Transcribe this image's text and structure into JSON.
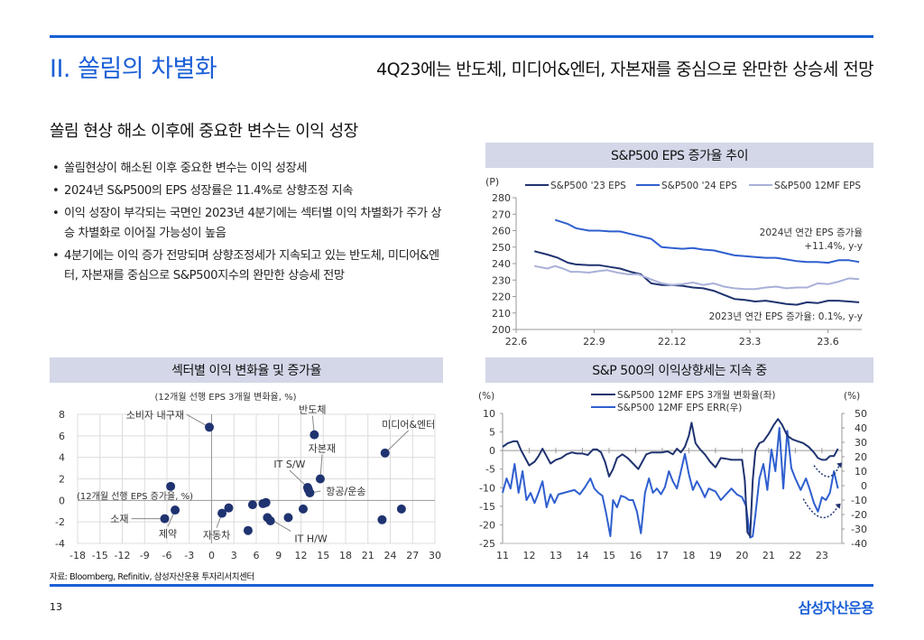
{
  "header": {
    "title": "II. 쏠림의 차별화",
    "subtitle": "4Q23에는 반도체, 미디어&엔터, 자본재를 중심으로 완만한 상승세 전망"
  },
  "main": {
    "subheading": "쏠림 현상 해소 이후에 중요한 변수는 이익 성장",
    "bullets": [
      "쏠림현상이 해소된 이후 중요한 변수는 이익 성장세",
      "2024년 S&P500의 EPS 성장률은 11.4%로 상향조정 지속",
      "이익 성장이 부각되는 국면인 2023년 4분기에는 섹터별 이익 차별화가 주가 상승 차별화로 이어질 가능성이 높음",
      "4분기에는 이익 증가 전망되며 상향조정세가 지속되고 있는 반도체, 미디어&엔터, 자본재를 중심으로 S&P500지수의 완만한 상승세 전망"
    ]
  },
  "colors": {
    "accent": "#1a5fd6",
    "header_bg": "#d3d7e8",
    "navy": "#1f3370",
    "blue": "#2f5fcf",
    "lavender": "#a9b0d8",
    "grid": "#dcdcdc"
  },
  "chart_data": [
    {
      "type": "line",
      "title": "S&P500 EPS 증가율 추이",
      "ylabel": "(P)",
      "ylim": [
        200,
        280
      ],
      "yticks": [
        "200",
        "210",
        "220",
        "230",
        "240",
        "250",
        "260",
        "270",
        "280"
      ],
      "xticks": [
        "22.6",
        "22.9",
        "22.12",
        "23.3",
        "23.6"
      ],
      "x_range_months": [
        0,
        13.3
      ],
      "annotations": [
        "2024년 연간 EPS 증가율",
        "+11.4%, y-y",
        "2023년 연간 EPS 증가율: 0.1%, y-y"
      ],
      "series": [
        {
          "name": "S&P500  '23 EPS",
          "color": "navy",
          "x": [
            0.7,
            1.2,
            1.6,
            2.0,
            2.3,
            2.8,
            3.2,
            3.6,
            4.0,
            4.4,
            4.8,
            5.2,
            5.6,
            6.0,
            6.4,
            6.8,
            7.2,
            7.6,
            8.0,
            8.4,
            8.8,
            9.2,
            9.6,
            10.0,
            10.4,
            10.8,
            11.2,
            11.6,
            12.0,
            12.4,
            12.8,
            13.2
          ],
          "y": [
            247.5,
            245.5,
            243.5,
            240.5,
            239.5,
            239,
            239,
            238,
            237,
            235,
            233.5,
            228,
            227,
            227,
            226.5,
            225.5,
            225,
            223.5,
            221,
            218.5,
            218,
            217,
            217.5,
            216.5,
            215.5,
            215,
            216.5,
            216,
            217.5,
            217.5,
            217,
            216.5
          ]
        },
        {
          "name": "S&P500  '24 EPS",
          "color": "blue",
          "x": [
            1.5,
            2.0,
            2.3,
            2.8,
            3.2,
            3.6,
            4.0,
            4.4,
            4.8,
            5.2,
            5.6,
            6.0,
            6.4,
            6.8,
            7.2,
            7.6,
            8.0,
            8.4,
            8.8,
            9.2,
            9.6,
            10.0,
            10.4,
            10.8,
            11.2,
            11.6,
            12.0,
            12.4,
            12.8,
            13.2
          ],
          "y": [
            266.5,
            264,
            261.5,
            260,
            260,
            259.5,
            259.5,
            258,
            256.5,
            255,
            250,
            249.5,
            249,
            249.5,
            248.5,
            248,
            246.5,
            245,
            244.5,
            244,
            243.5,
            243.5,
            242.5,
            241.5,
            241,
            241,
            240.5,
            242,
            242,
            241
          ]
        },
        {
          "name": "S&P500  12MF EPS",
          "color": "lavender",
          "x": [
            0.7,
            1.2,
            1.5,
            1.8,
            2.1,
            2.4,
            2.8,
            3.2,
            3.5,
            3.9,
            4.3,
            4.7,
            5.1,
            5.6,
            6.0,
            6.4,
            6.8,
            7.2,
            7.6,
            8.0,
            8.4,
            8.8,
            9.2,
            9.6,
            10.0,
            10.4,
            10.8,
            11.2,
            11.6,
            12.0,
            12.4,
            12.8,
            13.2
          ],
          "y": [
            238.5,
            237,
            238.5,
            237,
            235,
            235,
            234.5,
            235.5,
            236,
            234.5,
            233.5,
            233.5,
            231,
            228,
            227,
            227.5,
            228.5,
            227,
            228,
            226,
            225,
            224.5,
            224.5,
            225.5,
            226,
            225,
            225.5,
            225.5,
            228,
            227.5,
            229,
            231,
            230.5
          ]
        }
      ]
    },
    {
      "type": "scatter",
      "title": "섹터별 이익 변화율 및 증가율",
      "xlabel": "(12개월 선행 EPS 3개월 변화율, %)",
      "ylabel": "(12개월 선행 EPS 증가율, %)",
      "xlim": [
        -18,
        30
      ],
      "ylim": [
        -4,
        8
      ],
      "xticks": [
        "-18",
        "-15",
        "-12",
        "-9",
        "-6",
        "-3",
        "0",
        "3",
        "6",
        "9",
        "12",
        "15",
        "18",
        "21",
        "24",
        "27",
        "30"
      ],
      "yticks": [
        "-4",
        "-2",
        "0",
        "2",
        "4",
        "6",
        "8"
      ],
      "points": [
        {
          "label": "소비자 내구재",
          "x": -0.3,
          "y": 6.8
        },
        {
          "label": "반도체",
          "x": 13.8,
          "y": 6.1
        },
        {
          "label": "미디어&엔터",
          "x": 23.3,
          "y": 4.4
        },
        {
          "label": "자본재",
          "x": 14.6,
          "y": 2.0
        },
        {
          "label": "IT S/W",
          "x": 12.9,
          "y": 1.2
        },
        {
          "label": "항공/운송",
          "x": 13.2,
          "y": 0.7
        },
        {
          "label": "",
          "x": 13.0,
          "y": 1.0
        },
        {
          "label": "",
          "x": -5.5,
          "y": 1.3
        },
        {
          "label": "제약",
          "x": -4.9,
          "y": -0.9
        },
        {
          "label": "소재",
          "x": -6.3,
          "y": -1.7
        },
        {
          "label": "자동차",
          "x": 1.4,
          "y": -1.2
        },
        {
          "label": "",
          "x": 2.3,
          "y": -0.7
        },
        {
          "label": "",
          "x": 4.9,
          "y": -2.8
        },
        {
          "label": "",
          "x": 5.5,
          "y": -0.4
        },
        {
          "label": "",
          "x": 6.9,
          "y": -0.3
        },
        {
          "label": "",
          "x": 7.3,
          "y": -0.2
        },
        {
          "label": "IT H/W",
          "x": 7.5,
          "y": -1.6
        },
        {
          "label": "",
          "x": 7.9,
          "y": -1.9
        },
        {
          "label": "",
          "x": 10.3,
          "y": -1.6
        },
        {
          "label": "",
          "x": 12.3,
          "y": -0.8
        },
        {
          "label": "",
          "x": 22.9,
          "y": -1.8
        },
        {
          "label": "",
          "x": 25.5,
          "y": -0.8
        }
      ]
    },
    {
      "type": "line",
      "title": "S&P 500의 이익상향세는 지속 중",
      "ylabel_left": "(%)",
      "ylabel_right": "(%)",
      "ylim_left": [
        -25,
        10
      ],
      "ylim_right": [
        -40,
        50
      ],
      "yticks_left": [
        "10",
        "5",
        "0",
        "-5",
        "-10",
        "-15",
        "-20",
        "-25"
      ],
      "yticks_right": [
        "50",
        "40",
        "30",
        "20",
        "10",
        "0",
        "-10",
        "-20",
        "-30",
        "-40"
      ],
      "xticks": [
        "11",
        "12",
        "13",
        "14",
        "15",
        "16",
        "17",
        "18",
        "19",
        "20",
        "21",
        "22",
        "23"
      ],
      "x_range_years": [
        11,
        23.75
      ],
      "series": [
        {
          "name": "S&P500 12MF EPS 3개월 변화율(좌)",
          "axis": "left",
          "color": "navy",
          "x": [
            11,
            11.2,
            11.4,
            11.55,
            11.7,
            11.85,
            12.0,
            12.2,
            12.35,
            12.5,
            12.65,
            12.8,
            13.0,
            13.2,
            13.4,
            13.6,
            13.8,
            14.0,
            14.2,
            14.4,
            14.55,
            14.7,
            14.85,
            15.0,
            15.15,
            15.3,
            15.5,
            15.7,
            15.9,
            16.1,
            16.25,
            16.4,
            16.6,
            16.8,
            17.0,
            17.2,
            17.4,
            17.55,
            17.7,
            17.85,
            18.0,
            18.1,
            18.25,
            18.4,
            18.6,
            18.8,
            19.0,
            19.2,
            19.4,
            19.6,
            19.8,
            20.0,
            20.1,
            20.2,
            20.3,
            20.4,
            20.5,
            20.65,
            20.8,
            21.0,
            21.2,
            21.35,
            21.5,
            21.7,
            21.9,
            22.1,
            22.3,
            22.5,
            22.7,
            22.85,
            23.0,
            23.15,
            23.3,
            23.45,
            23.6
          ],
          "y": [
            1,
            2,
            2.5,
            2.5,
            0,
            -2,
            -4,
            -3,
            -1.5,
            0.5,
            -1.5,
            -3.5,
            -2.5,
            -2,
            -1,
            -0.5,
            -0.8,
            -0.8,
            -1.2,
            0.3,
            0.3,
            -0.5,
            -3,
            -7,
            -5,
            -2,
            -1,
            -2,
            -3.5,
            -5,
            -3,
            -1,
            -0.5,
            -0.5,
            -0.5,
            -0.2,
            -1,
            0.5,
            -0.5,
            1,
            4,
            7.5,
            2,
            0.5,
            -1,
            -3,
            -4.5,
            -2,
            -2.2,
            -2.5,
            -2.5,
            -2.5,
            -8,
            -22,
            -23,
            -8,
            0,
            2,
            2.5,
            4.5,
            7,
            8.5,
            7,
            4,
            3,
            2.5,
            2,
            1,
            -0.5,
            -2,
            -2.5,
            -2.5,
            -1.5,
            -1.5,
            0.5
          ]
        },
        {
          "name": "S&P500 12MF EPS ERR(우)",
          "axis": "right",
          "color": "blue",
          "x": [
            11,
            11.15,
            11.3,
            11.45,
            11.6,
            11.75,
            11.9,
            12.05,
            12.2,
            12.35,
            12.5,
            12.65,
            12.8,
            12.95,
            13.1,
            13.3,
            13.5,
            13.7,
            13.9,
            14.1,
            14.3,
            14.45,
            14.6,
            14.75,
            14.9,
            15.05,
            15.15,
            15.3,
            15.45,
            15.6,
            15.75,
            15.9,
            16.05,
            16.2,
            16.35,
            16.5,
            16.65,
            16.8,
            16.95,
            17.1,
            17.25,
            17.4,
            17.55,
            17.7,
            17.85,
            18.0,
            18.15,
            18.3,
            18.45,
            18.6,
            18.75,
            19.0,
            19.2,
            19.4,
            19.6,
            19.8,
            20.0,
            20.15,
            20.3,
            20.4,
            20.5,
            20.65,
            20.8,
            20.95,
            21.1,
            21.25,
            21.4,
            21.55,
            21.7,
            21.85,
            22.0,
            22.2,
            22.4,
            22.55,
            22.7,
            22.85,
            23.0,
            23.15,
            23.3,
            23.45,
            23.6
          ],
          "y": [
            -5,
            5,
            -2,
            15,
            -5,
            10,
            -10,
            -5,
            -12,
            -5,
            3,
            -15,
            -6,
            -12,
            -6,
            -5,
            -4,
            -3,
            -6,
            -1,
            5,
            -2,
            -5,
            -7,
            -20,
            -35,
            -10,
            -15,
            -7,
            -8,
            -10,
            -10,
            -18,
            -33,
            -5,
            5,
            -5,
            -2,
            -6,
            -1,
            10,
            3,
            -2,
            10,
            22,
            8,
            -3,
            3,
            -2,
            -8,
            -2,
            -4,
            -10,
            -6,
            -2,
            -6,
            -8,
            -14,
            -36,
            -35,
            -20,
            5,
            15,
            -3,
            25,
            10,
            40,
            -2,
            38,
            12,
            5,
            -3,
            5,
            -3,
            -12,
            -18,
            -8,
            -10,
            -5,
            10,
            -2
          ]
        }
      ]
    }
  ],
  "footer": {
    "source": "자료: Bloomberg, Refinitiv, 삼성자산운용 투자리서치센터",
    "page_number": "13",
    "brand": "삼성자산운용"
  }
}
